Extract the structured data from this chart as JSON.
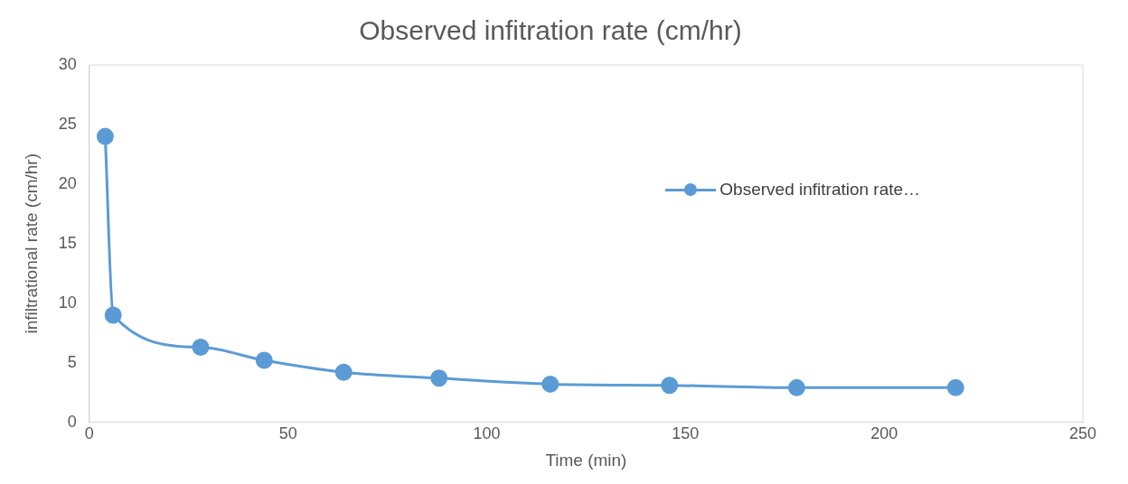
{
  "chart_data": {
    "type": "line",
    "title": "Observed infitration rate (cm/hr)",
    "xlabel": "Time (min)",
    "ylabel": "infiltrational rate (cm/hr)",
    "x": [
      4,
      6,
      28,
      44,
      64,
      88,
      116,
      146,
      178,
      218
    ],
    "series": [
      {
        "name": "Observed infitration rate…",
        "color": "#5b9bd5",
        "values": [
          24,
          9,
          6.3,
          5.2,
          4.2,
          3.7,
          3.2,
          3.1,
          2.9,
          2.9
        ]
      }
    ],
    "xlim": [
      0,
      250
    ],
    "xticks": [
      0,
      50,
      100,
      150,
      200,
      250
    ],
    "ylim": [
      0,
      30
    ],
    "yticks": [
      0,
      5,
      10,
      15,
      20,
      25,
      30
    ],
    "marker": "circle",
    "legend": "right",
    "grid": false
  }
}
